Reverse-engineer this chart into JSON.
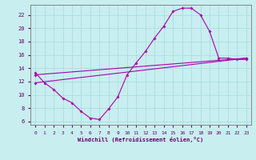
{
  "xlabel": "Windchill (Refroidissement éolien,°C)",
  "background_color": "#c8eef0",
  "grid_color": "#aadde0",
  "line_color": "#aa00aa",
  "xlim": [
    -0.5,
    23.5
  ],
  "ylim": [
    5.5,
    23.5
  ],
  "xticks": [
    0,
    1,
    2,
    3,
    4,
    5,
    6,
    7,
    8,
    9,
    10,
    11,
    12,
    13,
    14,
    15,
    16,
    17,
    18,
    19,
    20,
    21,
    22,
    23
  ],
  "yticks": [
    6,
    8,
    10,
    12,
    14,
    16,
    18,
    20,
    22
  ],
  "curve1_x": [
    0,
    1,
    2,
    3,
    4,
    5,
    6,
    7,
    8,
    9,
    10,
    11,
    12,
    13,
    14,
    15,
    16,
    17,
    18,
    19,
    20,
    21,
    22,
    23
  ],
  "curve1_y": [
    13.3,
    11.8,
    10.8,
    9.5,
    8.8,
    7.5,
    6.5,
    6.3,
    7.9,
    9.7,
    13.0,
    14.8,
    16.5,
    18.5,
    20.3,
    22.5,
    23.0,
    23.0,
    22.0,
    19.5,
    15.5,
    15.5,
    15.3,
    15.3
  ],
  "line1_x": [
    0,
    23
  ],
  "line1_y": [
    11.8,
    15.5
  ],
  "line2_x": [
    0,
    23
  ],
  "line2_y": [
    13.0,
    15.5
  ]
}
